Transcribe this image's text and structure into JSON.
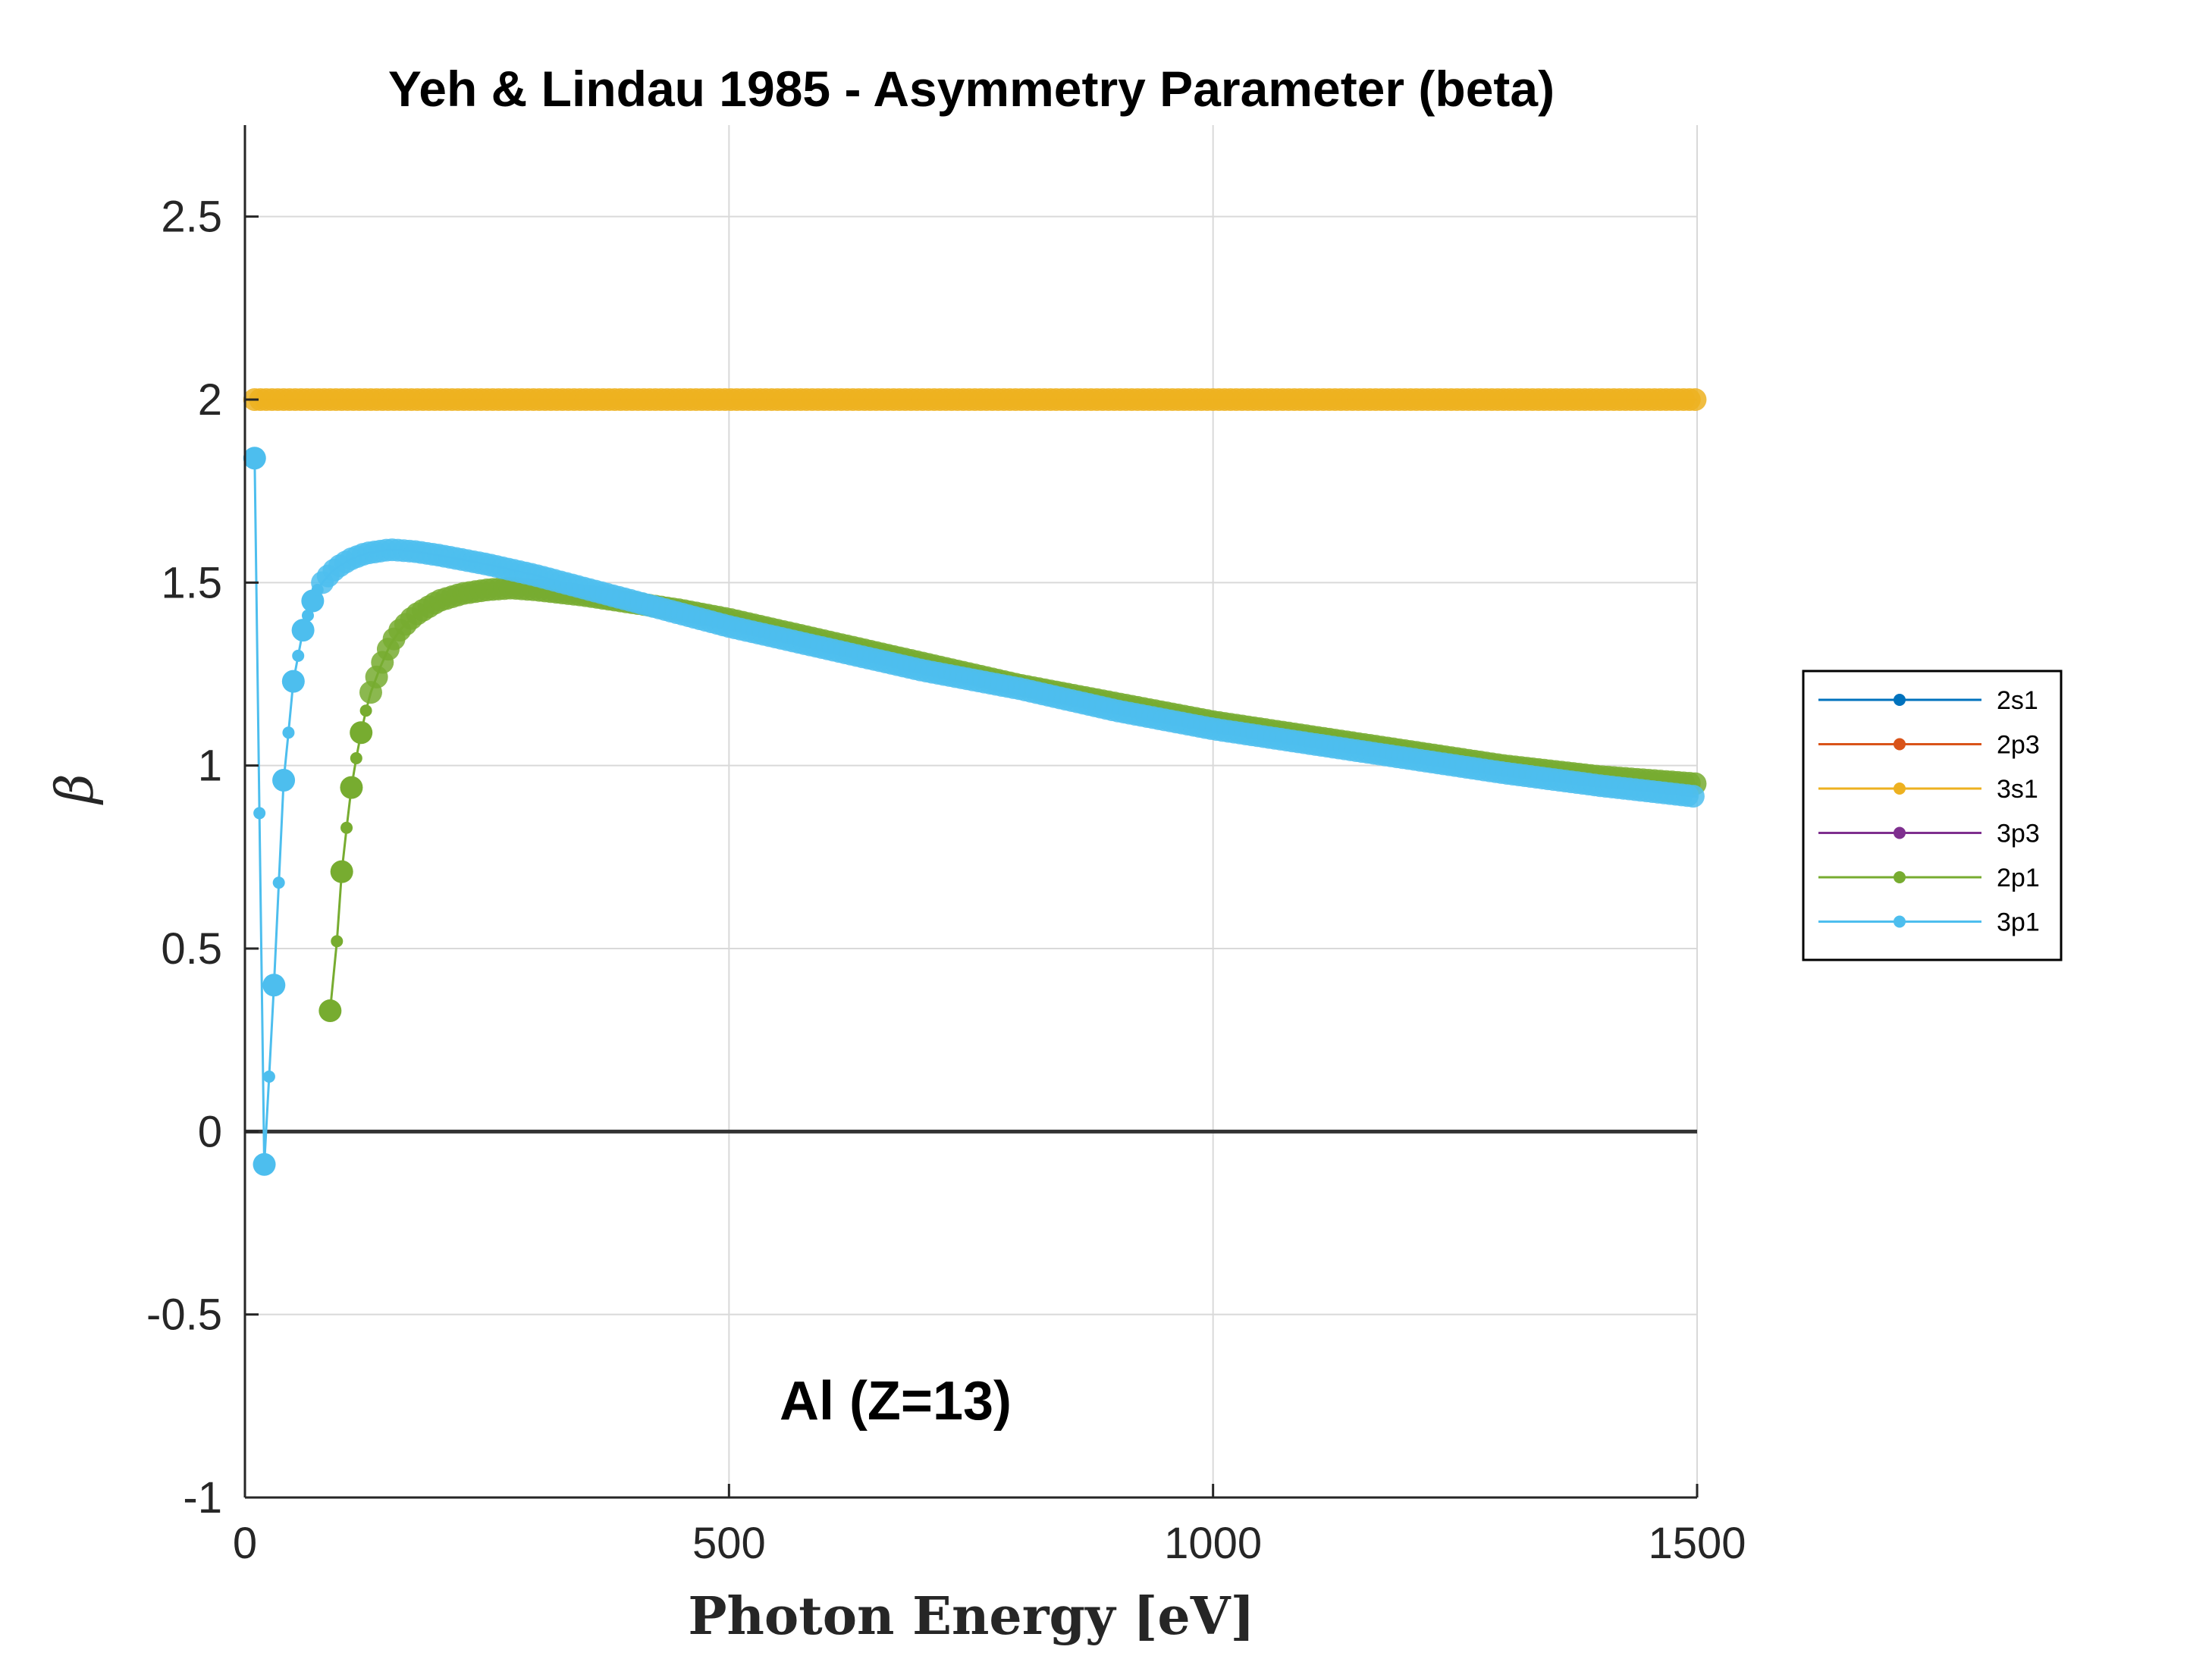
{
  "chart_data": {
    "type": "line",
    "title": "Yeh & Lindau 1985 - Asymmetry Parameter (beta)",
    "xlabel": "Photon Energy [eV]",
    "ylabel": "β",
    "annotation": "Al (Z=13)",
    "xlim": [
      0,
      1500
    ],
    "ylim": [
      -1,
      2.75
    ],
    "xticks": [
      0,
      500,
      1000,
      1500
    ],
    "xtick_labels": [
      "0",
      "500",
      "1000",
      "1500"
    ],
    "yticks": [
      -1,
      -0.5,
      0,
      0.5,
      1,
      1.5,
      2,
      2.5
    ],
    "ytick_labels": [
      "-1",
      "-0.5",
      "0",
      "0.5",
      "1",
      "1.5",
      "2",
      "2.5"
    ],
    "grid": true,
    "legend_position": "outside-right",
    "series": [
      {
        "name": "2s1",
        "color": "#0072BD",
        "x": [],
        "y": []
      },
      {
        "name": "2p3",
        "color": "#D95319",
        "x": [],
        "y": []
      },
      {
        "name": "3s1",
        "color": "#EDB120",
        "x": [
          10,
          20,
          30,
          40,
          50,
          60,
          70,
          80,
          90,
          100,
          120,
          150,
          200,
          300,
          400,
          500,
          600,
          700,
          800,
          900,
          1000,
          1100,
          1200,
          1300,
          1400,
          1500
        ],
        "y": [
          2,
          2,
          2,
          2,
          2,
          2,
          2,
          2,
          2,
          2,
          2,
          2,
          2,
          2,
          2,
          2,
          2,
          2,
          2,
          2,
          2,
          2,
          2,
          2,
          2,
          2
        ]
      },
      {
        "name": "3p3",
        "color": "#7E2F8E",
        "x": [],
        "y": []
      },
      {
        "name": "2p1",
        "color": "#77AC30",
        "x": [
          88,
          95,
          100,
          105,
          110,
          115,
          120,
          125,
          130,
          140,
          150,
          160,
          175,
          200,
          225,
          250,
          275,
          300,
          350,
          400,
          450,
          500,
          600,
          700,
          800,
          900,
          1000,
          1100,
          1200,
          1300,
          1400,
          1500
        ],
        "y": [
          0.33,
          0.52,
          0.71,
          0.83,
          0.94,
          1.02,
          1.09,
          1.15,
          1.2,
          1.27,
          1.33,
          1.37,
          1.41,
          1.45,
          1.47,
          1.48,
          1.485,
          1.48,
          1.465,
          1.445,
          1.425,
          1.4,
          1.34,
          1.28,
          1.22,
          1.17,
          1.12,
          1.08,
          1.04,
          1.0,
          0.97,
          0.95
        ]
      },
      {
        "name": "3p1",
        "color": "#4DBEEE",
        "x": [
          10,
          15,
          20,
          25,
          30,
          35,
          40,
          45,
          50,
          55,
          60,
          65,
          70,
          75,
          80,
          90,
          100,
          110,
          125,
          150,
          175,
          200,
          250,
          300,
          350,
          400,
          500,
          600,
          700,
          800,
          900,
          1000,
          1100,
          1200,
          1300,
          1400,
          1500
        ],
        "y": [
          1.84,
          0.87,
          -0.09,
          0.15,
          0.4,
          0.68,
          0.96,
          1.09,
          1.23,
          1.3,
          1.37,
          1.41,
          1.45,
          1.48,
          1.5,
          1.53,
          1.55,
          1.565,
          1.58,
          1.59,
          1.585,
          1.575,
          1.55,
          1.52,
          1.485,
          1.45,
          1.38,
          1.32,
          1.26,
          1.21,
          1.15,
          1.1,
          1.06,
          1.02,
          0.98,
          0.945,
          0.915
        ]
      }
    ]
  }
}
